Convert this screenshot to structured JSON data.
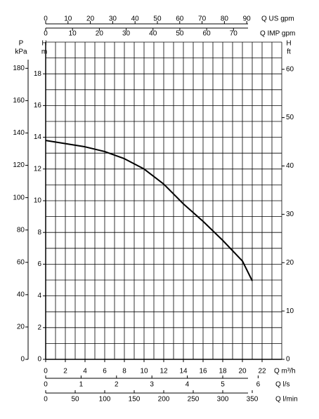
{
  "chart_data": {
    "type": "line",
    "x_label": "Q m³/h",
    "y_label_lines": [
      "H",
      "m"
    ],
    "x": [
      0,
      2,
      4,
      6,
      8,
      10,
      12,
      14,
      16,
      18,
      20,
      21
    ],
    "series": [
      {
        "color": "#000000",
        "values": [
          13.8,
          13.6,
          13.4,
          13.1,
          12.65,
          12.0,
          11.05,
          9.8,
          8.7,
          7.5,
          6.2,
          4.95
        ]
      }
    ],
    "xlim": [
      0,
      24
    ],
    "xticks": [
      0,
      2,
      4,
      6,
      8,
      10,
      12,
      14,
      16,
      18,
      20,
      22
    ],
    "ylim": [
      0,
      20
    ],
    "yticks": [
      0,
      2,
      4,
      6,
      8,
      10,
      12,
      14,
      16,
      18
    ],
    "grid": {
      "x_step": 1,
      "y_step": 1
    },
    "secondary_axes": [
      {
        "position": "top",
        "label": "Q US gpm",
        "lim": [
          0,
          105.67
        ],
        "ticks": [
          0,
          10,
          20,
          30,
          40,
          50,
          60,
          70,
          80,
          90
        ]
      },
      {
        "position": "top2",
        "label": "Q IMP gpm",
        "lim": [
          0,
          87.99
        ],
        "ticks": [
          0,
          10,
          20,
          30,
          40,
          50,
          60,
          70
        ]
      },
      {
        "position": "bottom2",
        "label": "Q l/s",
        "lim": [
          0,
          6.667
        ],
        "ticks": [
          0,
          1,
          2,
          3,
          4,
          5,
          6
        ]
      },
      {
        "position": "bottom3",
        "label": "Q l/min",
        "lim": [
          0,
          400
        ],
        "ticks": [
          0,
          50,
          100,
          150,
          200,
          250,
          300,
          350
        ]
      },
      {
        "position": "left2",
        "label_lines": [
          "P",
          "kPa"
        ],
        "lim": [
          0,
          196.2
        ],
        "ticks": [
          0,
          20,
          40,
          60,
          80,
          100,
          120,
          140,
          160,
          180
        ]
      },
      {
        "position": "right",
        "label_lines": [
          "H",
          "ft"
        ],
        "lim": [
          0,
          65.62
        ],
        "ticks": [
          0,
          10,
          20,
          30,
          40,
          50,
          60
        ]
      }
    ]
  }
}
